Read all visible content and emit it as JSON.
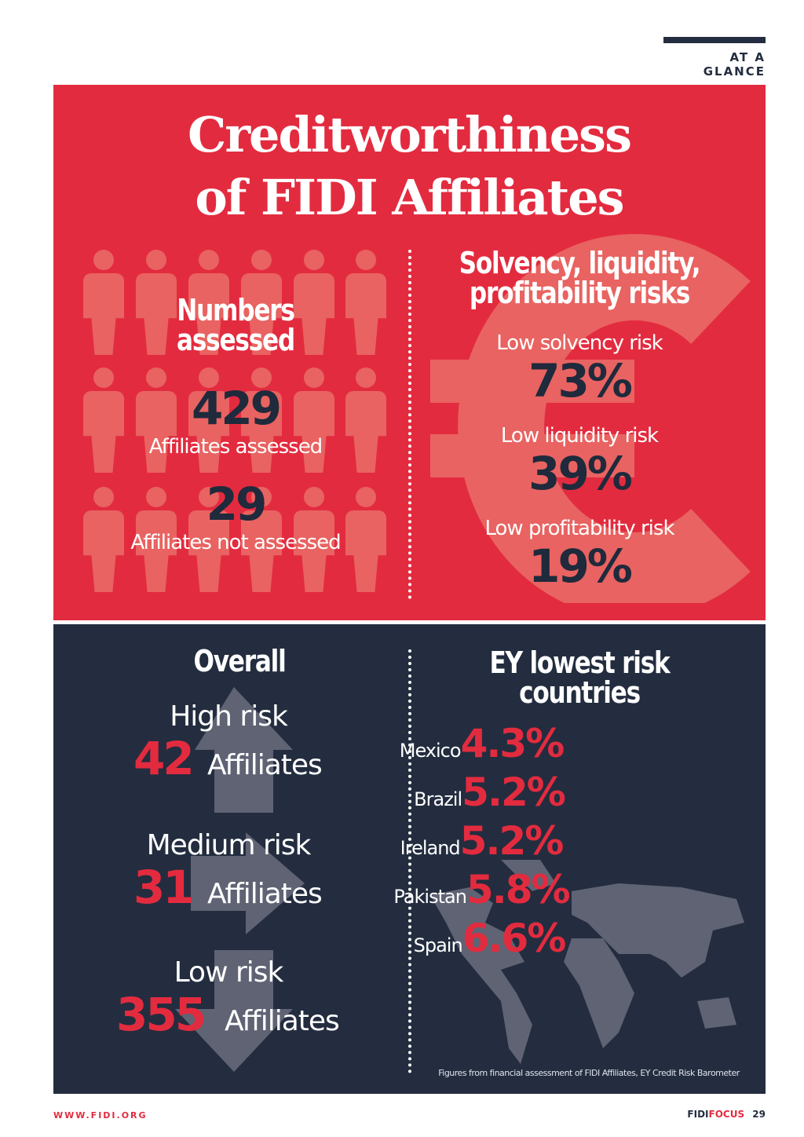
{
  "header": {
    "section": "AT A GLANCE"
  },
  "title": {
    "line1": "Creditworthiness",
    "line2": "of FIDI Affiliates"
  },
  "numbers": {
    "heading_line1": "Numbers",
    "heading_line2": "assessed",
    "assessed_value": "429",
    "assessed_label": "Affiliates assessed",
    "not_assessed_value": "29",
    "not_assessed_label": "Affiliates not assessed"
  },
  "risks": {
    "heading_line1": "Solvency, liquidity,",
    "heading_line2": "profitability risks",
    "items": [
      {
        "label": "Low solvency risk",
        "value": "73%"
      },
      {
        "label": "Low liquidity risk",
        "value": "39%"
      },
      {
        "label": "Low profitability risk",
        "value": "19%"
      }
    ]
  },
  "overall": {
    "heading": "Overall",
    "items": [
      {
        "label": "High risk",
        "value": "42",
        "unit": "Affiliates"
      },
      {
        "label": "Medium risk",
        "value": "31",
        "unit": "Affiliates"
      },
      {
        "label": "Low risk",
        "value": "355",
        "unit": "Affiliates"
      }
    ]
  },
  "countries": {
    "heading_line1": "EY lowest risk",
    "heading_line2": "countries",
    "items": [
      {
        "name": "Mexico",
        "value": "4.3%"
      },
      {
        "name": "Brazil",
        "value": "5.2%"
      },
      {
        "name": "Ireland",
        "value": "5.2%"
      },
      {
        "name": "Pakistan",
        "value": "5.8%"
      },
      {
        "name": "Spain",
        "value": "6.6%"
      }
    ]
  },
  "source": "Figures from financial assessment of FIDI Affiliates, EY Credit Risk Barometer",
  "footer": {
    "url": "WWW.FIDI.ORG",
    "brand_a": "FIDI",
    "brand_b": "FOCUS",
    "page": "29"
  },
  "colors": {
    "red": "#e32b3f",
    "navy": "#232d3f"
  }
}
